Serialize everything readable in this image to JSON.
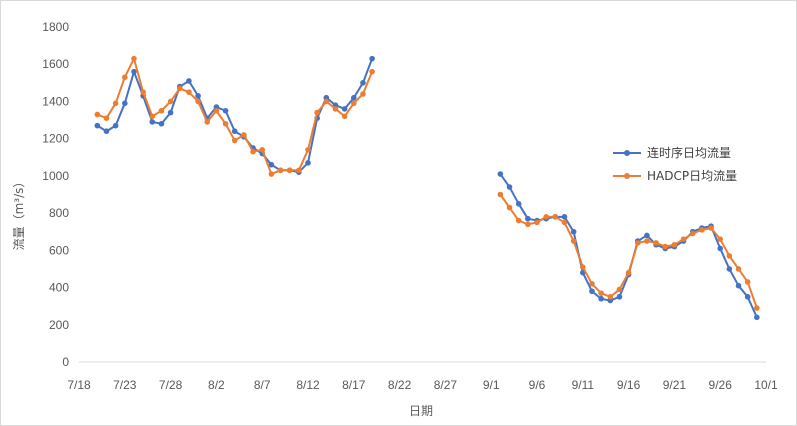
{
  "chart_data": {
    "type": "line",
    "xlabel": "日期",
    "ylabel": "流量（m³/s）",
    "ylim": [
      0,
      1800
    ],
    "yticks": [
      0,
      200,
      400,
      600,
      800,
      1000,
      1200,
      1400,
      1600,
      1800
    ],
    "xlim": [
      "2023-07-18",
      "2023-10-01"
    ],
    "xtick_labels": [
      "7/18",
      "7/23",
      "7/28",
      "8/2",
      "8/7",
      "8/12",
      "8/17",
      "8/22",
      "8/27",
      "9/1",
      "9/6",
      "9/11",
      "9/16",
      "9/21",
      "9/26",
      "10/1"
    ],
    "xtick_dates": [
      "2023-07-18",
      "2023-07-23",
      "2023-07-28",
      "2023-08-02",
      "2023-08-07",
      "2023-08-12",
      "2023-08-17",
      "2023-08-22",
      "2023-08-27",
      "2023-09-01",
      "2023-09-06",
      "2023-09-11",
      "2023-09-16",
      "2023-09-21",
      "2023-09-26",
      "2023-10-01"
    ],
    "grid": false,
    "legend_position": "right",
    "series": [
      {
        "name": "连时序日均流量",
        "color": "#4472c4",
        "segments": [
          {
            "start": "2023-07-20",
            "values": [
              1270,
              1240,
              1270,
              1390,
              1560,
              1430,
              1290,
              1280,
              1340,
              1480,
              1510,
              1430,
              1310,
              1370,
              1350,
              1240,
              1210,
              1150,
              1120,
              1060,
              1030,
              1030,
              1020,
              1070,
              1310,
              1420,
              1380,
              1360,
              1420,
              1500,
              1630
            ]
          },
          {
            "start": "2023-09-02",
            "values": [
              1010,
              940,
              850,
              770,
              760,
              770,
              780,
              780,
              700,
              480,
              380,
              340,
              330,
              350,
              470,
              650,
              680,
              630,
              610,
              620,
              650,
              700,
              720,
              730,
              610,
              500,
              410,
              350,
              240
            ]
          }
        ]
      },
      {
        "name": "HADCP日均流量",
        "color": "#ed7d31",
        "segments": [
          {
            "start": "2023-07-20",
            "values": [
              1330,
              1310,
              1390,
              1530,
              1630,
              1450,
              1320,
              1350,
              1400,
              1470,
              1450,
              1400,
              1290,
              1350,
              1280,
              1190,
              1220,
              1130,
              1140,
              1010,
              1030,
              1030,
              1030,
              1140,
              1340,
              1400,
              1360,
              1320,
              1390,
              1440,
              1560
            ]
          },
          {
            "start": "2023-09-02",
            "values": [
              900,
              830,
              760,
              740,
              750,
              780,
              780,
              750,
              650,
              510,
              420,
              370,
              350,
              390,
              480,
              640,
              650,
              640,
              620,
              630,
              660,
              690,
              710,
              720,
              660,
              570,
              500,
              430,
              290
            ]
          }
        ]
      }
    ]
  }
}
